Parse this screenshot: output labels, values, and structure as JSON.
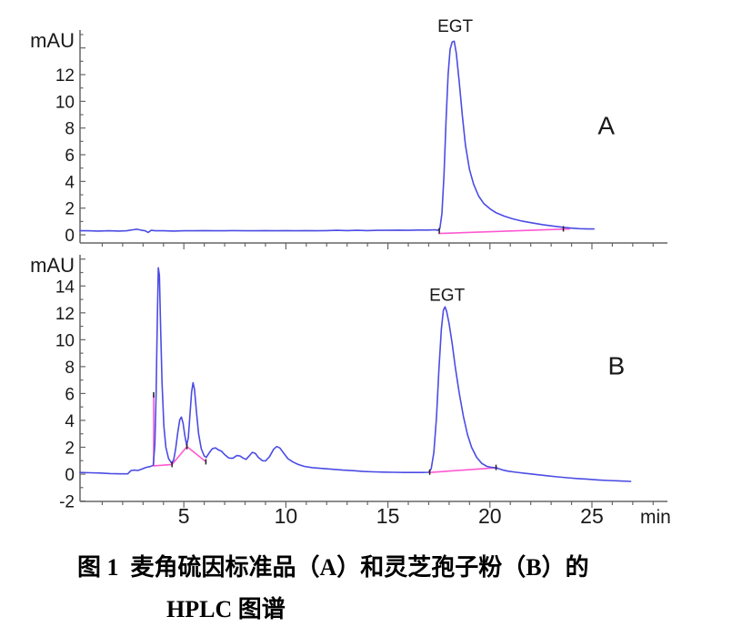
{
  "figure": {
    "caption_line1": "图 1  麦角硫因标准品（A）和灵芝孢子粉（B）的",
    "caption_line2": "HPLC 图谱"
  },
  "colors": {
    "trace": "#4c4ce4",
    "integration_baseline": "#ff5ad2",
    "axis": "#666666",
    "tick_text": "#1a1a1a",
    "marker": "#222222"
  },
  "chart_data": {
    "type": "line",
    "x_unit_label": "min",
    "x_range": [
      0,
      28.7
    ],
    "x_ticks_labeled": [
      5,
      10,
      15,
      20,
      25
    ],
    "x_minor_step": 1,
    "grid": "off",
    "panels": [
      {
        "name": "A",
        "panel_letter": "A",
        "ylabel": "mAU",
        "y_range": [
          -0.61,
          15.34
        ],
        "y_ticks_labeled": [
          0,
          2,
          4,
          6,
          8,
          10,
          12
        ],
        "show_x_labels": false,
        "annotations": [
          {
            "text": "EGT",
            "t": 18.3,
            "value": 15.2,
            "size": 19
          },
          {
            "text": "A",
            "t": 25.7,
            "value": 7.55,
            "size": 28
          }
        ],
        "series": [
          {
            "name": "chromatogram",
            "color_key": "trace",
            "points": [
              [
                -0.09,
                0.3
              ],
              [
                0.3,
                0.3
              ],
              [
                0.8,
                0.28
              ],
              [
                1.3,
                0.3
              ],
              [
                1.8,
                0.28
              ],
              [
                2.2,
                0.3
              ],
              [
                2.5,
                0.38
              ],
              [
                2.7,
                0.42
              ],
              [
                2.9,
                0.35
              ],
              [
                3.1,
                0.3
              ],
              [
                3.25,
                0.18
              ],
              [
                3.4,
                0.34
              ],
              [
                3.6,
                0.3
              ],
              [
                4.0,
                0.3
              ],
              [
                4.5,
                0.28
              ],
              [
                5.0,
                0.3
              ],
              [
                5.5,
                0.3
              ],
              [
                6.0,
                0.32
              ],
              [
                6.5,
                0.3
              ],
              [
                7.0,
                0.3
              ],
              [
                7.5,
                0.32
              ],
              [
                8.0,
                0.3
              ],
              [
                8.5,
                0.3
              ],
              [
                9.0,
                0.32
              ],
              [
                9.5,
                0.3
              ],
              [
                10.0,
                0.32
              ],
              [
                10.5,
                0.3
              ],
              [
                11.0,
                0.32
              ],
              [
                11.5,
                0.3
              ],
              [
                12.0,
                0.32
              ],
              [
                12.5,
                0.34
              ],
              [
                13.0,
                0.32
              ],
              [
                13.5,
                0.34
              ],
              [
                14.0,
                0.32
              ],
              [
                14.5,
                0.34
              ],
              [
                15.0,
                0.34
              ],
              [
                15.5,
                0.35
              ],
              [
                16.0,
                0.34
              ],
              [
                16.5,
                0.36
              ],
              [
                17.0,
                0.36
              ],
              [
                17.3,
                0.38
              ],
              [
                17.45,
                0.34
              ],
              [
                17.55,
                0.5
              ],
              [
                17.65,
                1.6
              ],
              [
                17.75,
                4.5
              ],
              [
                17.85,
                8.5
              ],
              [
                17.95,
                12.0
              ],
              [
                18.05,
                13.9
              ],
              [
                18.15,
                14.45
              ],
              [
                18.25,
                14.5
              ],
              [
                18.35,
                13.6
              ],
              [
                18.5,
                11.4
              ],
              [
                18.65,
                8.9
              ],
              [
                18.8,
                6.7
              ],
              [
                19.0,
                4.9
              ],
              [
                19.2,
                3.8
              ],
              [
                19.45,
                2.9
              ],
              [
                19.7,
                2.35
              ],
              [
                20.0,
                1.95
              ],
              [
                20.3,
                1.65
              ],
              [
                20.7,
                1.4
              ],
              [
                21.1,
                1.2
              ],
              [
                21.6,
                1.02
              ],
              [
                22.1,
                0.88
              ],
              [
                22.6,
                0.76
              ],
              [
                23.1,
                0.66
              ],
              [
                23.6,
                0.56
              ],
              [
                24.0,
                0.5
              ],
              [
                24.4,
                0.46
              ],
              [
                24.8,
                0.44
              ],
              [
                25.1,
                0.44
              ]
            ]
          },
          {
            "name": "integration-baseline",
            "color_key": "integration_baseline",
            "points": [
              [
                17.5,
                0.1
              ],
              [
                23.9,
                0.44
              ]
            ]
          }
        ],
        "integration_markers": [
          [
            17.52,
            0.3
          ],
          [
            23.6,
            0.45
          ]
        ]
      },
      {
        "name": "B",
        "panel_letter": "B",
        "ylabel": "mAU",
        "y_range": [
          -2.03,
          16.32
        ],
        "y_ticks_labeled": [
          -2,
          0,
          2,
          4,
          6,
          8,
          10,
          12,
          14
        ],
        "show_x_labels": true,
        "annotations": [
          {
            "text": "EGT",
            "t": 17.9,
            "value": 12.9,
            "size": 19
          },
          {
            "text": "B",
            "t": 26.2,
            "value": 7.4,
            "size": 28
          }
        ],
        "series": [
          {
            "name": "chromatogram",
            "color_key": "trace",
            "points": [
              [
                -0.09,
                0.12
              ],
              [
                0.4,
                0.1
              ],
              [
                0.9,
                0.08
              ],
              [
                1.4,
                0.04
              ],
              [
                1.9,
                0.02
              ],
              [
                2.25,
                0.02
              ],
              [
                2.4,
                0.26
              ],
              [
                2.55,
                0.3
              ],
              [
                2.75,
                0.27
              ],
              [
                2.95,
                0.38
              ],
              [
                3.15,
                0.5
              ],
              [
                3.35,
                0.56
              ],
              [
                3.5,
                0.66
              ],
              [
                3.58,
                2.2
              ],
              [
                3.64,
                6.0
              ],
              [
                3.7,
                11.5
              ],
              [
                3.75,
                15.35
              ],
              [
                3.8,
                14.8
              ],
              [
                3.86,
                11.0
              ],
              [
                3.93,
                6.8
              ],
              [
                4.02,
                3.6
              ],
              [
                4.12,
                2.0
              ],
              [
                4.25,
                1.15
              ],
              [
                4.4,
                0.82
              ],
              [
                4.5,
                1.05
              ],
              [
                4.6,
                1.9
              ],
              [
                4.7,
                3.1
              ],
              [
                4.8,
                4.05
              ],
              [
                4.88,
                4.25
              ],
              [
                4.96,
                3.8
              ],
              [
                5.05,
                2.85
              ],
              [
                5.14,
                2.15
              ],
              [
                5.22,
                2.7
              ],
              [
                5.3,
                4.4
              ],
              [
                5.38,
                6.1
              ],
              [
                5.45,
                6.8
              ],
              [
                5.52,
                6.3
              ],
              [
                5.62,
                4.6
              ],
              [
                5.72,
                3.0
              ],
              [
                5.85,
                1.9
              ],
              [
                6.0,
                1.35
              ],
              [
                6.1,
                1.25
              ],
              [
                6.25,
                1.6
              ],
              [
                6.4,
                1.9
              ],
              [
                6.55,
                1.95
              ],
              [
                6.7,
                1.8
              ],
              [
                6.85,
                1.7
              ],
              [
                7.0,
                1.45
              ],
              [
                7.2,
                1.2
              ],
              [
                7.4,
                1.18
              ],
              [
                7.6,
                1.38
              ],
              [
                7.75,
                1.35
              ],
              [
                7.9,
                1.2
              ],
              [
                8.05,
                1.1
              ],
              [
                8.2,
                1.35
              ],
              [
                8.35,
                1.62
              ],
              [
                8.5,
                1.55
              ],
              [
                8.65,
                1.25
              ],
              [
                8.85,
                1.0
              ],
              [
                9.0,
                0.98
              ],
              [
                9.2,
                1.3
              ],
              [
                9.4,
                1.85
              ],
              [
                9.55,
                2.05
              ],
              [
                9.7,
                1.95
              ],
              [
                9.9,
                1.55
              ],
              [
                10.1,
                1.15
              ],
              [
                10.35,
                0.9
              ],
              [
                10.6,
                0.72
              ],
              [
                10.9,
                0.58
              ],
              [
                11.3,
                0.48
              ],
              [
                11.8,
                0.42
              ],
              [
                12.3,
                0.36
              ],
              [
                12.8,
                0.3
              ],
              [
                13.3,
                0.26
              ],
              [
                13.8,
                0.2
              ],
              [
                14.3,
                0.17
              ],
              [
                14.8,
                0.15
              ],
              [
                15.3,
                0.14
              ],
              [
                15.8,
                0.12
              ],
              [
                16.3,
                0.12
              ],
              [
                16.7,
                0.12
              ],
              [
                17.0,
                0.14
              ],
              [
                17.12,
                0.4
              ],
              [
                17.25,
                1.6
              ],
              [
                17.38,
                4.2
              ],
              [
                17.5,
                7.8
              ],
              [
                17.62,
                10.8
              ],
              [
                17.72,
                12.2
              ],
              [
                17.8,
                12.45
              ],
              [
                17.88,
                12.1
              ],
              [
                18.0,
                11.2
              ],
              [
                18.15,
                9.7
              ],
              [
                18.3,
                8.0
              ],
              [
                18.5,
                6.0
              ],
              [
                18.7,
                4.3
              ],
              [
                18.9,
                2.95
              ],
              [
                19.1,
                2.0
              ],
              [
                19.35,
                1.25
              ],
              [
                19.6,
                0.8
              ],
              [
                19.85,
                0.58
              ],
              [
                20.1,
                0.5
              ],
              [
                20.35,
                0.45
              ],
              [
                20.6,
                0.32
              ],
              [
                20.9,
                0.22
              ],
              [
                21.3,
                0.14
              ],
              [
                21.8,
                0.05
              ],
              [
                22.3,
                -0.04
              ],
              [
                22.8,
                -0.12
              ],
              [
                23.3,
                -0.2
              ],
              [
                23.8,
                -0.27
              ],
              [
                24.3,
                -0.33
              ],
              [
                24.8,
                -0.38
              ],
              [
                25.3,
                -0.43
              ],
              [
                25.8,
                -0.47
              ],
              [
                26.3,
                -0.5
              ],
              [
                26.9,
                -0.54
              ]
            ]
          },
          {
            "name": "integration-baseline-early-peaks",
            "color_key": "integration_baseline",
            "points": [
              [
                3.52,
                0.62
              ],
              [
                4.42,
                0.72
              ],
              [
                5.15,
                2.05
              ],
              [
                6.08,
                0.92
              ]
            ]
          },
          {
            "name": "integration-dropline",
            "color_key": "integration_baseline",
            "points": [
              [
                3.52,
                0.62
              ],
              [
                3.52,
                5.9
              ]
            ]
          },
          {
            "name": "integration-baseline-egt",
            "color_key": "integration_baseline",
            "points": [
              [
                17.05,
                0.12
              ],
              [
                20.35,
                0.48
              ]
            ]
          }
        ],
        "integration_markers": [
          [
            3.52,
            5.9
          ],
          [
            4.42,
            0.72
          ],
          [
            5.15,
            2.05
          ],
          [
            6.08,
            0.92
          ],
          [
            17.05,
            0.15
          ],
          [
            20.3,
            0.5
          ]
        ]
      }
    ]
  }
}
